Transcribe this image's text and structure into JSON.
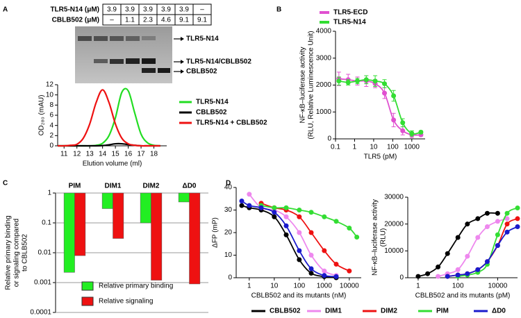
{
  "panels": [
    "A",
    "B",
    "C",
    "D"
  ],
  "table": {
    "rows": [
      [
        "TLR5-N14 (μM)",
        "3.9",
        "3.9",
        "3.9",
        "3.9",
        "3.9",
        "–"
      ],
      [
        "CBLB502 (μM)",
        "–",
        "1.1",
        "2.3",
        "4.6",
        "9.1",
        "9.1"
      ]
    ]
  },
  "gel_labels": [
    "TLR5-N14",
    "TLR5-N14/CBLB502",
    "CBLB502"
  ],
  "chart_data": [
    {
      "type": "line",
      "ylabel": "OD₂₈₀ (mAU)",
      "xlabel": "Elution volume (ml)",
      "x": [
        10.5,
        11,
        11.5,
        12,
        12.5,
        13,
        13.5,
        14,
        14.5,
        15,
        15.5,
        16,
        16.5,
        17,
        17.5,
        18,
        18.5
      ],
      "xlim": [
        10.5,
        19
      ],
      "xticks": [
        11,
        12,
        13,
        14,
        15,
        16,
        17,
        18
      ],
      "ylim": [
        0,
        12
      ],
      "yticks": [
        0,
        2,
        4,
        6,
        8,
        10,
        12
      ],
      "legend": "right",
      "series": [
        {
          "name": "TLR5-N14",
          "color": "#22dd22",
          "values": [
            0,
            0,
            0,
            0,
            0,
            0,
            0.1,
            0.5,
            2,
            5.5,
            10.5,
            10.8,
            6.5,
            2.3,
            0.6,
            0.1,
            0
          ]
        },
        {
          "name": "CBLB502",
          "color": "#000000",
          "values": [
            0,
            0,
            0,
            0,
            0,
            0,
            0,
            0.05,
            0.2,
            0.4,
            0.4,
            0.25,
            0.1,
            0,
            0,
            0,
            0
          ]
        },
        {
          "name": "TLR5-N14 + CBLB502",
          "color": "#ee1111",
          "values": [
            0,
            0,
            0.1,
            0.3,
            1.5,
            4.3,
            8.5,
            11,
            8.5,
            4.3,
            1.5,
            0.4,
            0.1,
            0,
            0,
            0,
            0
          ]
        }
      ]
    },
    {
      "type": "scatter",
      "xscale": "log",
      "ylabel": [
        "NF-κB–luciferase activity",
        "(RLU, Relative Luminescence Unit)"
      ],
      "xlabel": "TLR5 (pM)",
      "x": [
        0.15,
        0.46,
        1.4,
        4.1,
        12,
        37,
        111,
        333,
        1000,
        3000
      ],
      "xlim": [
        0.1,
        5000
      ],
      "xticks": [
        0.1,
        1,
        10,
        100,
        1000
      ],
      "ylim": [
        0,
        4000
      ],
      "yticks": [
        0,
        1000,
        2000,
        3000,
        4000
      ],
      "legend": "top",
      "series": [
        {
          "name": "TLR5-ECD",
          "color": "#e050d0",
          "values": [
            2230,
            2200,
            2150,
            2150,
            2050,
            1700,
            700,
            300,
            150,
            150
          ],
          "errors": [
            250,
            200,
            150,
            200,
            150,
            200,
            250,
            150,
            100,
            50
          ]
        },
        {
          "name": "TLR5-N14",
          "color": "#33dd33",
          "values": [
            2150,
            2100,
            2150,
            2200,
            2150,
            2050,
            1600,
            600,
            200,
            250
          ],
          "errors": [
            150,
            100,
            100,
            150,
            200,
            150,
            200,
            150,
            100,
            50
          ]
        }
      ]
    },
    {
      "type": "bar",
      "yscale": "log",
      "ylabel": [
        "Relative primary binding",
        "or signaling compared",
        "to CBLB502"
      ],
      "categories": [
        "PIM",
        "DIM1",
        "DIM2",
        "ΔD0"
      ],
      "ylim": [
        0.0001,
        1
      ],
      "yticks": [
        0.0001,
        0.001,
        0.01,
        0.1,
        1
      ],
      "grid": true,
      "legend": "lower left",
      "series": [
        {
          "name": "Relative primary binding",
          "color": "#22ee22",
          "values": [
            0.0022,
            0.3,
            0.1,
            0.5
          ]
        },
        {
          "name": "Relative signaling",
          "color": "#ee1111",
          "values": [
            0.008,
            0.03,
            0.0012,
            0.0009
          ]
        }
      ]
    },
    {
      "type": "scatter",
      "xscale": "log",
      "ylabel": "ΔFP (mP)",
      "xlabel": "CBLB502 and its mutants (nM)",
      "x": [
        0.5,
        1,
        3,
        10,
        30,
        100,
        300,
        1000,
        3000,
        10000,
        20000
      ],
      "xlim": [
        0.3,
        30000
      ],
      "xticks": [
        1,
        10,
        100,
        1000,
        10000
      ],
      "ylim": [
        0,
        40
      ],
      "yticks": [
        0,
        10,
        20,
        30,
        40
      ],
      "legend": "bottom",
      "series": [
        {
          "name": "CBLB502",
          "color": "#000000",
          "values": [
            32,
            31,
            30,
            27,
            19,
            8,
            2,
            0.5,
            0,
            null,
            null
          ]
        },
        {
          "name": "DIM1",
          "color": "#ee88ee",
          "values": [
            null,
            37,
            31,
            30,
            27,
            20,
            10,
            3,
            1,
            null,
            null
          ]
        },
        {
          "name": "DIM2",
          "color": "#ee1111",
          "values": [
            null,
            null,
            33,
            31,
            30,
            27,
            20,
            12,
            6,
            3,
            null
          ]
        },
        {
          "name": "PIM",
          "color": "#33dd33",
          "values": [
            null,
            null,
            32,
            31,
            31,
            30,
            29,
            27,
            25,
            22,
            18
          ]
        },
        {
          "name": "ΔD0",
          "color": "#1a1acc",
          "values": [
            34,
            32,
            31,
            29,
            23,
            12,
            4,
            1,
            0.5,
            null,
            null
          ]
        }
      ]
    },
    {
      "type": "scatter",
      "xscale": "log",
      "ylabel": [
        "NF-κB–luciferase activity",
        "(RLU)"
      ],
      "xlabel": "CBLB502 and its mutants (pM)",
      "x": [
        1,
        3,
        10,
        30,
        100,
        300,
        1000,
        3000,
        10000,
        30000,
        100000
      ],
      "xlim": [
        0.3,
        100000
      ],
      "xticks": [
        1,
        100,
        10000
      ],
      "ylim": [
        0,
        30000
      ],
      "yticks": [
        0,
        10000,
        20000,
        30000
      ],
      "series": [
        {
          "color": "#000000",
          "values": [
            500,
            1500,
            4000,
            9000,
            15000,
            20000,
            22000,
            24000,
            24000,
            null,
            null
          ]
        },
        {
          "color": "#ee88ee",
          "values": [
            null,
            null,
            500,
            1500,
            3000,
            8000,
            15000,
            19000,
            21000,
            22000,
            null
          ]
        },
        {
          "color": "#ee1111",
          "values": [
            null,
            null,
            null,
            500,
            1000,
            1500,
            3000,
            6000,
            12000,
            20000,
            22000
          ]
        },
        {
          "color": "#33dd33",
          "values": [
            null,
            null,
            null,
            null,
            500,
            1000,
            2000,
            5000,
            16000,
            24000,
            26000
          ]
        },
        {
          "color": "#1a1acc",
          "values": [
            null,
            null,
            null,
            500,
            1000,
            1500,
            3000,
            6000,
            12000,
            17000,
            19000
          ]
        }
      ]
    }
  ]
}
